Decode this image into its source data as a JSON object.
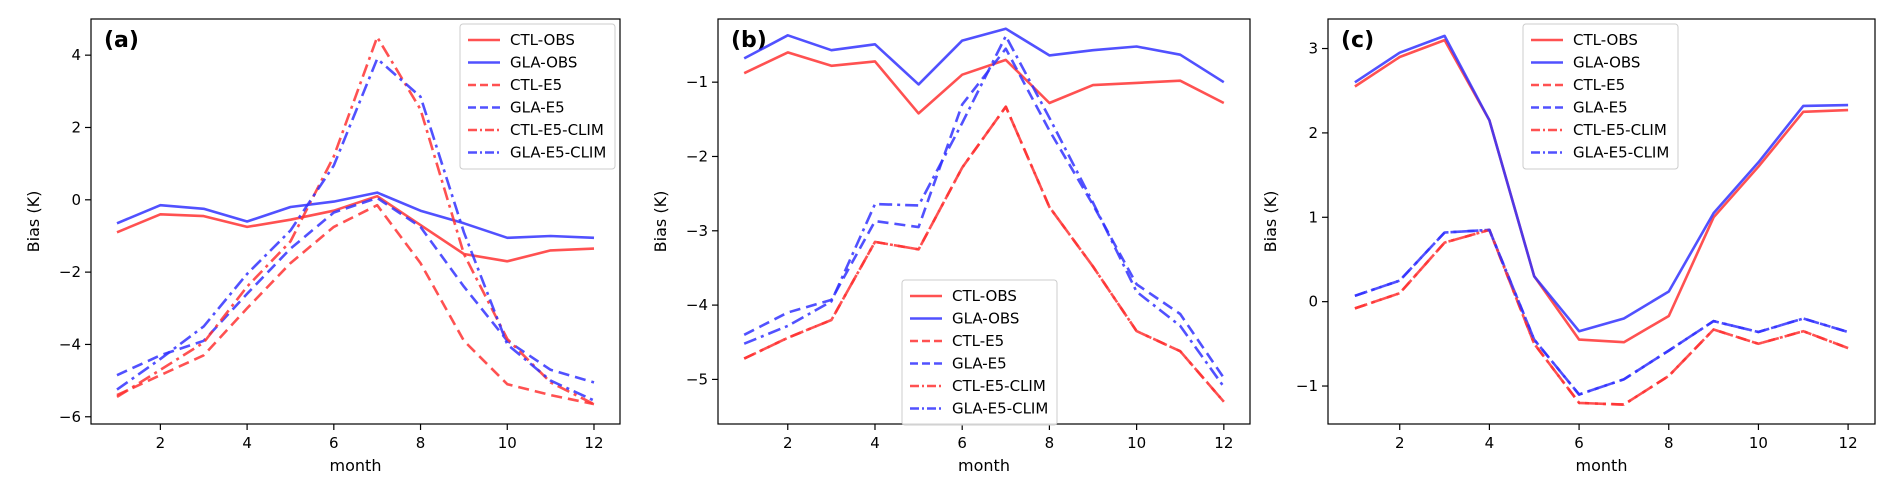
{
  "colors": {
    "ctl": "#ff3333",
    "gla": "#3333ff"
  },
  "chart_data": [
    {
      "type": "line",
      "panel_label": "(a)",
      "xlabel": "month",
      "ylabel": "Bias (K)",
      "xlim": [
        0.4,
        12.6
      ],
      "ylim": [
        -6.2,
        5.0
      ],
      "xticks": [
        2,
        4,
        6,
        8,
        10,
        12
      ],
      "yticks": [
        -6,
        -4,
        -2,
        0,
        2,
        4
      ],
      "legend_position": "top-right",
      "x": [
        1,
        2,
        3,
        4,
        5,
        6,
        7,
        8,
        9,
        10,
        11,
        12
      ],
      "series": [
        {
          "name": "CTL-OBS",
          "group": "ctl",
          "style": "solid",
          "values": [
            -0.9,
            -0.4,
            -0.45,
            -0.75,
            -0.55,
            -0.3,
            0.1,
            -0.7,
            -1.5,
            -1.7,
            -1.4,
            -1.35
          ]
        },
        {
          "name": "GLA-OBS",
          "group": "gla",
          "style": "solid",
          "values": [
            -0.65,
            -0.15,
            -0.25,
            -0.6,
            -0.2,
            -0.05,
            0.2,
            -0.3,
            -0.65,
            -1.05,
            -1.0,
            -1.05
          ]
        },
        {
          "name": "CTL-E5",
          "group": "ctl",
          "style": "dashed",
          "values": [
            -5.4,
            -4.85,
            -4.3,
            -3.0,
            -1.75,
            -0.75,
            -0.15,
            -1.75,
            -3.9,
            -5.1,
            -5.4,
            -5.65
          ]
        },
        {
          "name": "GLA-E5",
          "group": "gla",
          "style": "dashed",
          "values": [
            -4.85,
            -4.3,
            -3.9,
            -2.6,
            -1.35,
            -0.35,
            0.05,
            -0.75,
            -2.4,
            -3.9,
            -4.7,
            -5.05
          ]
        },
        {
          "name": "CTL-E5-CLIM",
          "group": "ctl",
          "style": "dashdot",
          "values": [
            -5.45,
            -4.7,
            -3.95,
            -2.4,
            -1.15,
            1.2,
            4.5,
            2.5,
            -1.5,
            -3.85,
            -5.05,
            -5.65
          ]
        },
        {
          "name": "GLA-E5-CLIM",
          "group": "gla",
          "style": "dashdot",
          "values": [
            -5.25,
            -4.4,
            -3.5,
            -2.05,
            -0.85,
            0.95,
            3.9,
            2.85,
            -0.9,
            -4.0,
            -5.0,
            -5.55
          ]
        }
      ]
    },
    {
      "type": "line",
      "panel_label": "(b)",
      "xlabel": "month",
      "ylabel": "Bias (K)",
      "xlim": [
        0.4,
        12.6
      ],
      "ylim": [
        -5.6,
        -0.15
      ],
      "xticks": [
        2,
        4,
        6,
        8,
        10,
        12
      ],
      "yticks": [
        -5,
        -4,
        -3,
        -2,
        -1
      ],
      "legend_position": "bottom-center",
      "x": [
        1,
        2,
        3,
        4,
        5,
        6,
        7,
        8,
        9,
        10,
        11,
        12
      ],
      "series": [
        {
          "name": "CTL-OBS",
          "group": "ctl",
          "style": "solid",
          "values": [
            -0.88,
            -0.6,
            -0.78,
            -0.72,
            -1.42,
            -0.9,
            -0.7,
            -1.28,
            -1.04,
            -1.01,
            -0.98,
            -1.28
          ]
        },
        {
          "name": "GLA-OBS",
          "group": "gla",
          "style": "solid",
          "values": [
            -0.68,
            -0.37,
            -0.57,
            -0.49,
            -1.03,
            -0.44,
            -0.28,
            -0.64,
            -0.57,
            -0.52,
            -0.63,
            -1.0
          ]
        },
        {
          "name": "CTL-E5",
          "group": "ctl",
          "style": "dashed",
          "values": [
            -4.72,
            -4.44,
            -4.2,
            -3.15,
            -3.25,
            -2.15,
            -1.33,
            -2.68,
            -3.48,
            -4.35,
            -4.62,
            -5.3
          ]
        },
        {
          "name": "GLA-E5",
          "group": "gla",
          "style": "dashed",
          "values": [
            -4.4,
            -4.1,
            -3.93,
            -2.87,
            -2.95,
            -1.3,
            -0.55,
            -1.65,
            -2.65,
            -3.72,
            -4.12,
            -4.98
          ]
        },
        {
          "name": "CTL-E5-CLIM",
          "group": "ctl",
          "style": "dashdot",
          "values": [
            -4.72,
            -4.44,
            -4.2,
            -3.15,
            -3.25,
            -2.15,
            -1.33,
            -2.68,
            -3.48,
            -4.35,
            -4.62,
            -5.3
          ]
        },
        {
          "name": "GLA-E5-CLIM",
          "group": "gla",
          "style": "dashdot",
          "values": [
            -4.52,
            -4.28,
            -3.95,
            -2.64,
            -2.66,
            -1.55,
            -0.38,
            -1.48,
            -2.62,
            -3.82,
            -4.28,
            -5.1
          ]
        }
      ]
    },
    {
      "type": "line",
      "panel_label": "(c)",
      "xlabel": "month",
      "ylabel": "Bias (K)",
      "xlim": [
        0.4,
        12.6
      ],
      "ylim": [
        -1.45,
        3.35
      ],
      "xticks": [
        2,
        4,
        6,
        8,
        10,
        12
      ],
      "yticks": [
        -1,
        0,
        1,
        2,
        3
      ],
      "legend_position": "top-center",
      "x": [
        1,
        2,
        3,
        4,
        5,
        6,
        7,
        8,
        9,
        10,
        11,
        12
      ],
      "series": [
        {
          "name": "CTL-OBS",
          "group": "ctl",
          "style": "solid",
          "values": [
            2.55,
            2.9,
            3.1,
            2.15,
            0.3,
            -0.45,
            -0.48,
            -0.17,
            1.0,
            1.6,
            2.25,
            2.27
          ]
        },
        {
          "name": "GLA-OBS",
          "group": "gla",
          "style": "solid",
          "values": [
            2.6,
            2.95,
            3.15,
            2.15,
            0.3,
            -0.35,
            -0.2,
            0.12,
            1.05,
            1.65,
            2.32,
            2.33
          ]
        },
        {
          "name": "CTL-E5",
          "group": "ctl",
          "style": "dashed",
          "values": [
            -0.08,
            0.1,
            0.7,
            0.85,
            -0.5,
            -1.2,
            -1.22,
            -0.88,
            -0.33,
            -0.5,
            -0.35,
            -0.55
          ]
        },
        {
          "name": "GLA-E5",
          "group": "gla",
          "style": "dashed",
          "values": [
            0.07,
            0.25,
            0.82,
            0.85,
            -0.45,
            -1.1,
            -0.92,
            -0.58,
            -0.23,
            -0.36,
            -0.2,
            -0.36
          ]
        },
        {
          "name": "CTL-E5-CLIM",
          "group": "ctl",
          "style": "dashdot",
          "values": [
            -0.08,
            0.1,
            0.7,
            0.85,
            -0.5,
            -1.2,
            -1.22,
            -0.88,
            -0.33,
            -0.5,
            -0.35,
            -0.55
          ]
        },
        {
          "name": "GLA-E5-CLIM",
          "group": "gla",
          "style": "dashdot",
          "values": [
            0.07,
            0.25,
            0.82,
            0.85,
            -0.45,
            -1.1,
            -0.92,
            -0.58,
            -0.23,
            -0.36,
            -0.2,
            -0.36
          ]
        }
      ]
    }
  ]
}
